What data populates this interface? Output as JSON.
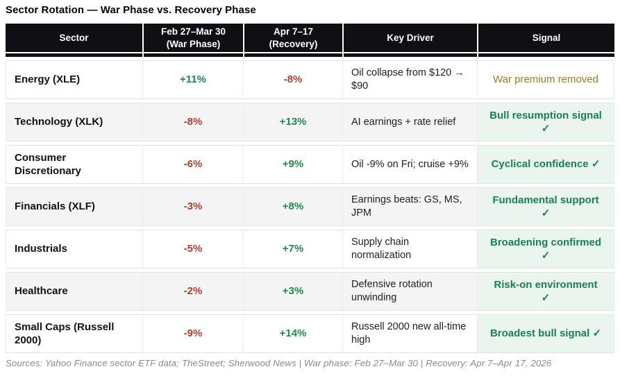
{
  "title": "Sector Rotation — War Phase vs. Recovery Phase",
  "table": {
    "columns": [
      "Sector",
      "Feb 27–Mar 30\n(War Phase)",
      "Apr 7–17\n(Recovery)",
      "Key Driver",
      "Signal"
    ],
    "rows": [
      {
        "sector": "Energy (XLE)",
        "war": "+11%",
        "recovery": "-8%",
        "driver": "Oil collapse from $120 → $90",
        "signal": "War premium removed",
        "signal_type": "warning"
      },
      {
        "sector": "Technology (XLK)",
        "war": "-8%",
        "recovery": "+13%",
        "driver": "AI earnings + rate relief",
        "signal": "Bull resumption signal ✓",
        "signal_type": "bullish"
      },
      {
        "sector": "Consumer Discretionary",
        "war": "-6%",
        "recovery": "+9%",
        "driver": "Oil -9% on Fri; cruise +9%",
        "signal": "Cyclical confidence ✓",
        "signal_type": "bullish"
      },
      {
        "sector": "Financials (XLF)",
        "war": "-3%",
        "recovery": "+8%",
        "driver": "Earnings beats: GS, MS, JPM",
        "signal": "Fundamental support ✓",
        "signal_type": "bullish"
      },
      {
        "sector": "Industrials",
        "war": "-5%",
        "recovery": "+7%",
        "driver": "Supply chain normalization",
        "signal": "Broadening confirmed ✓",
        "signal_type": "bullish"
      },
      {
        "sector": "Healthcare",
        "war": "-2%",
        "recovery": "+3%",
        "driver": "Defensive rotation unwinding",
        "signal": "Risk-on environment ✓",
        "signal_type": "bullish"
      },
      {
        "sector": "Small Caps (Russell 2000)",
        "war": "-9%",
        "recovery": "+14%",
        "driver": "Russell 2000 new all-time high",
        "signal": "Broadest bull signal ✓",
        "signal_type": "bullish"
      }
    ]
  },
  "footer": "Sources: Yahoo Finance sector ETF data; TheStreet; Sherwood News | War phase: Feb 27–Mar 30 | Recovery: Apr 7–Apr 17, 2026",
  "colors": {
    "positive": "#1e8a50",
    "negative": "#b63c30",
    "signal_bullish_text": "#1b8150",
    "signal_bullish_bg": "#e9f5ee",
    "signal_warning_text": "#9d7e20",
    "header_bg": "#0f0f15",
    "alt_row_bg": "#f4f4f4"
  },
  "chart_data": {
    "type": "table",
    "title": "Sector Rotation — War Phase vs. Recovery Phase",
    "columns": [
      "Sector",
      "Feb 27–Mar 30 (War Phase)",
      "Apr 7–17 (Recovery)",
      "Key Driver",
      "Signal"
    ],
    "categories": [
      "Energy (XLE)",
      "Technology (XLK)",
      "Consumer Discretionary",
      "Financials (XLF)",
      "Industrials",
      "Healthcare",
      "Small Caps (Russell 2000)"
    ],
    "series": [
      {
        "name": "War Phase % (Feb 27–Mar 30)",
        "values": [
          11,
          -8,
          -6,
          -3,
          -5,
          -2,
          -9
        ]
      },
      {
        "name": "Recovery % (Apr 7–17)",
        "values": [
          -8,
          13,
          9,
          8,
          7,
          3,
          14
        ]
      }
    ],
    "key_drivers": [
      "Oil collapse from $120 → $90",
      "AI earnings + rate relief",
      "Oil -9% on Fri; cruise +9%",
      "Earnings beats: GS, MS, JPM",
      "Supply chain normalization",
      "Defensive rotation unwinding",
      "Russell 2000 new all-time high"
    ],
    "signals": [
      "War premium removed",
      "Bull resumption signal ✓",
      "Cyclical confidence ✓",
      "Fundamental support ✓",
      "Broadening confirmed ✓",
      "Risk-on environment ✓",
      "Broadest bull signal ✓"
    ]
  }
}
